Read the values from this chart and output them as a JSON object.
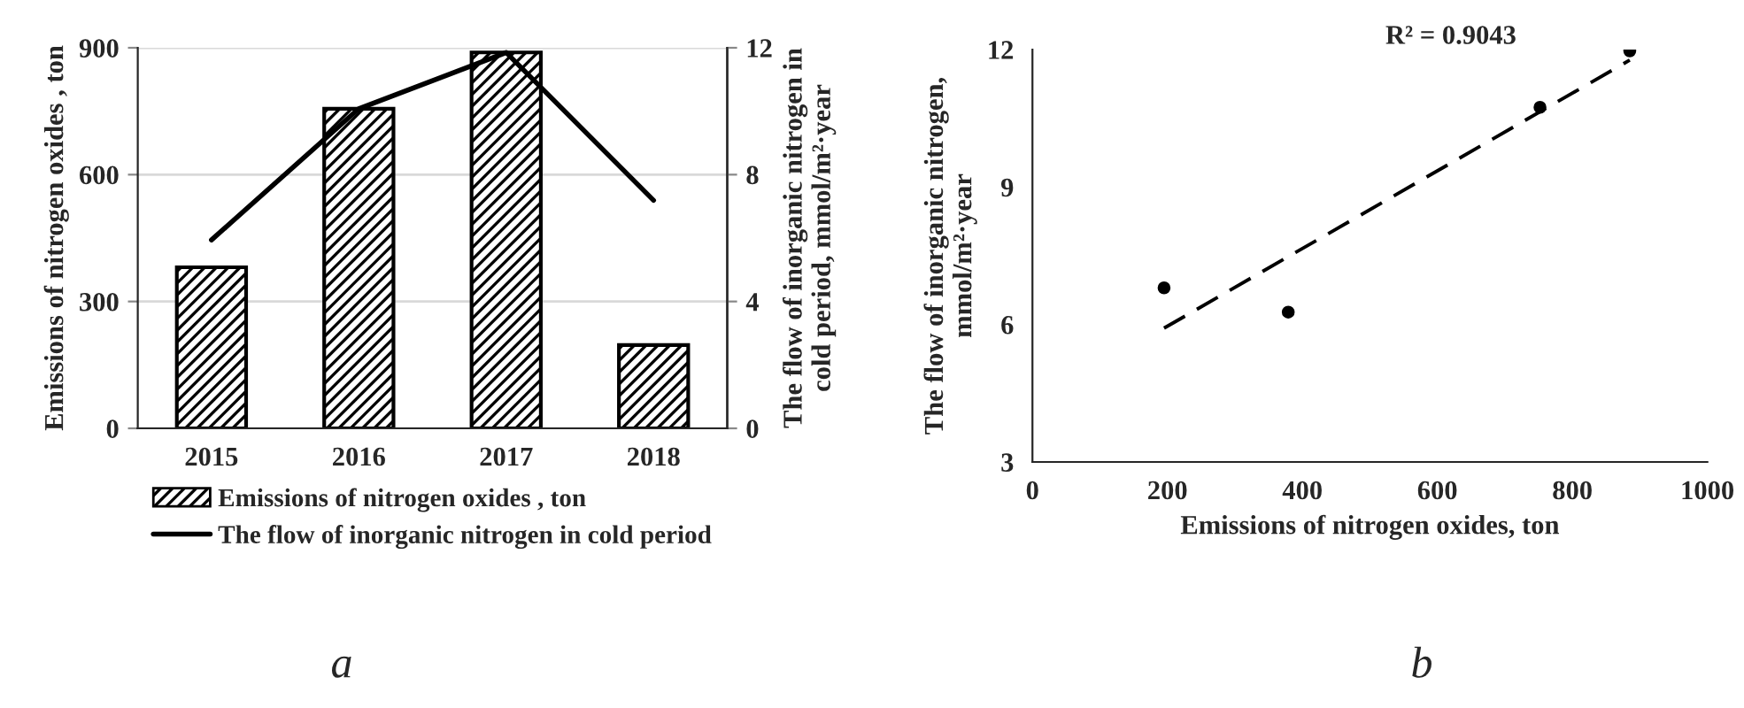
{
  "chart_data": [
    {
      "type": "bar",
      "categories": [
        "2015",
        "2016",
        "2017",
        "2018"
      ],
      "ylabel": "Emissions of nitrogen oxides , ton",
      "y2label": "The flow of inorganic nitrogen in\ncold period, mmol/m²·year",
      "ylim": [
        0,
        900
      ],
      "yticks": [
        0,
        300,
        600,
        900
      ],
      "y2lim": [
        0,
        12
      ],
      "y2ticks": [
        0,
        4,
        8,
        12
      ],
      "grid": "y",
      "legend": "bottom",
      "series": [
        {
          "name": "Emissions of nitrogen oxides , ton",
          "color": "#000000",
          "values": [
            381,
            756,
            889,
            197
          ]
        },
        {
          "name": "The flow of inorganic nitrogen in cold period",
          "type": "line",
          "axis": "y2",
          "color": "#000000",
          "values": [
            5.94,
            10.08,
            11.85,
            7.19
          ]
        }
      ],
      "annotations": [
        "a"
      ]
    },
    {
      "type": "scatter",
      "xlabel": "Emissions of nitrogen oxides, ton",
      "ylabel": "The flow of inorganic nitrogen,\nmmol/m²·year",
      "xlim": [
        0,
        1000
      ],
      "xticks": [
        0,
        200,
        400,
        600,
        800,
        1000
      ],
      "ylim": [
        3,
        12
      ],
      "yticks": [
        3,
        6,
        9,
        12
      ],
      "grid": false,
      "series": [
        {
          "marker": "circle",
          "color": "#000000",
          "x": [
            195,
            379,
            752,
            885
          ],
          "values": [
            6.8,
            6.27,
            10.74,
            11.97
          ]
        },
        {
          "type": "line",
          "marker": "none",
          "color": "#000000",
          "line_style": "dashed",
          "x": [
            195,
            885
          ],
          "values": [
            5.92,
            11.77
          ]
        }
      ],
      "annotations": [
        "R² = 0.9043",
        "b"
      ]
    }
  ]
}
